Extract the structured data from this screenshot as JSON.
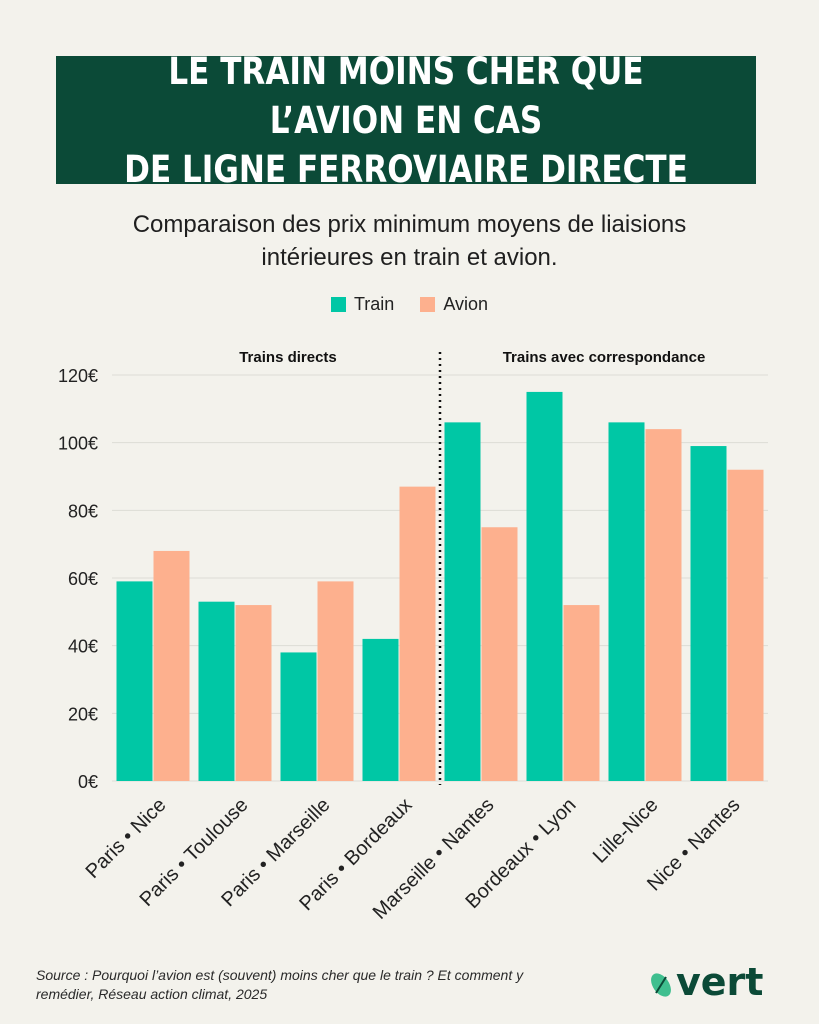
{
  "title": "LE TRAIN MOINS CHER QUE L’AVION EN CAS\nDE LIGNE FERROVIAIRE DIRECTE",
  "subtitle": "Comparaison des prix minimum moyens de liaisions intérieures en train et avion.",
  "legend": [
    {
      "name": "Train",
      "color": "#00c7a5"
    },
    {
      "name": "Avion",
      "color": "#fdb08e"
    }
  ],
  "section_labels": {
    "left": "Trains directs",
    "right": "Trains avec correspondance"
  },
  "source": "Source : Pourquoi l’avion est (souvent) moins cher que le train ? Et comment y remédier, Réseau action climat, 2025",
  "logo_text": "vert",
  "chart_data": {
    "type": "bar",
    "categories": [
      "Paris • Nice",
      "Paris • Toulouse",
      "Paris • Marseille",
      "Paris • Bordeaux",
      "Marseille • Nantes",
      "Bordeaux • Lyon",
      "Lille-Nice",
      "Nice • Nantes"
    ],
    "series": [
      {
        "name": "Train",
        "values": [
          59,
          53,
          38,
          42,
          106,
          115,
          106,
          99
        ]
      },
      {
        "name": "Avion",
        "values": [
          68,
          52,
          59,
          87,
          75,
          52,
          104,
          92
        ]
      }
    ],
    "ylim": [
      0,
      120
    ],
    "yticks": [
      0,
      20,
      40,
      60,
      80,
      100,
      120
    ],
    "ytick_labels": [
      "0€",
      "20€",
      "40€",
      "60€",
      "80€",
      "100€",
      "120€"
    ],
    "divider_after_category": 3,
    "grid": true,
    "legend_position": "top-center",
    "colors": {
      "train": "#00c7a5",
      "avion": "#fdb08e",
      "grid": "#dcdcd6",
      "title_bg": "#0b4a37"
    }
  }
}
